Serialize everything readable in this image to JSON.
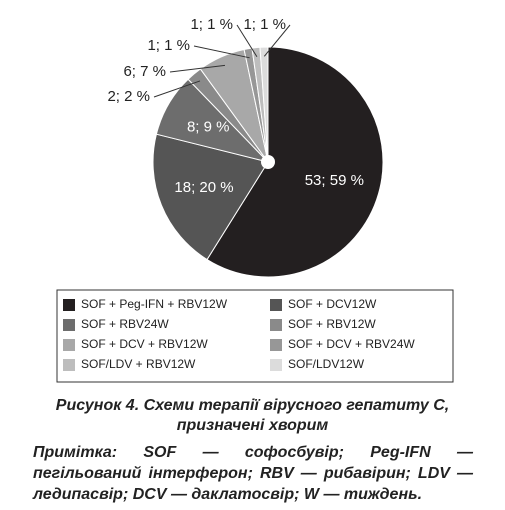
{
  "chart_data": {
    "type": "pie",
    "categories": [
      "SOF + Peg-IFN + RBV12W",
      "SOF + DCV12W",
      "SOF + RBV24W",
      "SOF + RBV12W",
      "SOF + DCV + RBV12W",
      "SOF + DCV + RBV24W",
      "SOF/LDV + RBV12W",
      "SOF/LDV12W"
    ],
    "values": [
      53,
      18,
      8,
      2,
      6,
      1,
      1,
      1
    ],
    "value_labels": [
      "53; 59 %",
      "18; 20 %",
      "8; 9 %",
      "2; 2 %",
      "6; 7 %",
      "1; 1 %",
      "1; 1 %",
      "1; 1 %"
    ],
    "colors": [
      "#231f20",
      "#555555",
      "#6d6d6d",
      "#8a8a8a",
      "#a8a8a8",
      "#979797",
      "#bdbdbd",
      "#dcdcdc"
    ]
  },
  "caption": "Рисунок 4.  Схеми терапії вірусного гепатиту С, призначені хворим",
  "note": "Примітка:  SOF — софосбувір; Peg-IFN — пегільований інтерферон; RBV — рибавірин; LDV — ледипасвір; DCV — даклатосвір; W — тиждень."
}
